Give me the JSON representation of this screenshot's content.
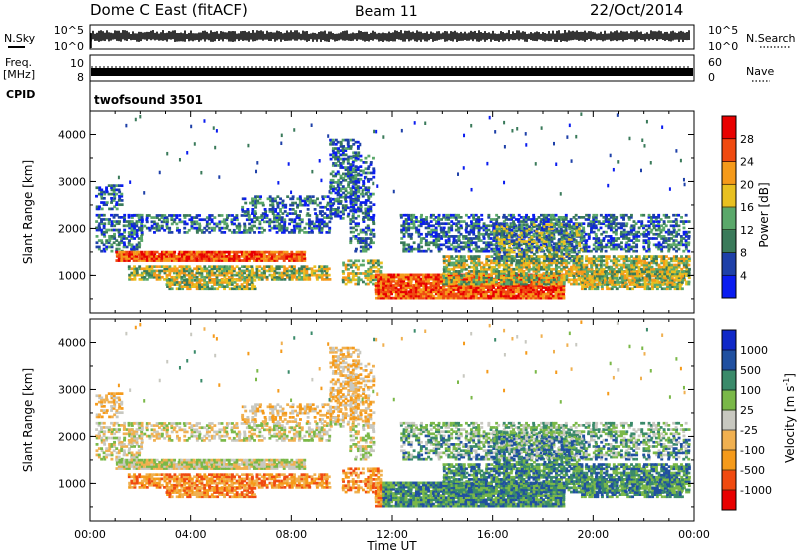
{
  "header": {
    "title": "Dome C East (fitACF)",
    "beam": "Beam 11",
    "date": "22/Oct/2014"
  },
  "top_panels": {
    "noise_left_label": "N.Sky",
    "noise_right_label": "N.Search",
    "noise_ticks_left": [
      "10^5",
      "10^0"
    ],
    "noise_ticks_right": [
      "10^5",
      "10^0"
    ],
    "freq_label_line1": "Freq.",
    "freq_label_line2": "[MHz]",
    "freq_ticks_left": [
      "10",
      "8"
    ],
    "nave_label": "Nave",
    "nave_ticks_right": [
      "60",
      "0"
    ],
    "cpid_label": "CPID",
    "cpid_value": "twofsound 3501"
  },
  "chart_data": [
    {
      "type": "heatmap",
      "panel": "power",
      "xlabel": "Time UT",
      "ylabel": "Slant Range [km]",
      "yticks": [
        "1000",
        "2000",
        "3000",
        "4000"
      ],
      "ylim": [
        200,
        4500
      ],
      "xlim_hours": [
        0,
        24
      ],
      "colorbar_label": "Power [dB]",
      "colorbar_ticks": [
        "28",
        "24",
        "20",
        "16",
        "12",
        "8",
        "4"
      ],
      "colors": [
        "#0a1cf0",
        "#1e40a8",
        "#3a7a5a",
        "#5aa86a",
        "#e8c020",
        "#f59a1a",
        "#f04a10",
        "#e80000"
      ],
      "color_scale_range": [
        0,
        32
      ]
    },
    {
      "type": "heatmap",
      "panel": "velocity",
      "xlabel": "Time UT",
      "ylabel": "Slant Range [km]",
      "yticks": [
        "1000",
        "2000",
        "3000",
        "4000"
      ],
      "ylim": [
        200,
        4500
      ],
      "xlim_hours": [
        0,
        24
      ],
      "colorbar_label_main": "Velocity [m s",
      "colorbar_label_exp": "-1",
      "colorbar_label_close": "]",
      "colorbar_ticks": [
        "1000",
        "500",
        "100",
        "25",
        "-25",
        "-100",
        "-500",
        "-1000"
      ],
      "colors": [
        "#e80000",
        "#f04a10",
        "#f59a1a",
        "#f0b050",
        "#c8c8c0",
        "#7ab848",
        "#3a8a6a",
        "#2050a0",
        "#1028c8"
      ]
    }
  ],
  "x_axis": {
    "ticks": [
      "00:00",
      "04:00",
      "08:00",
      "12:00",
      "16:00",
      "20:00",
      "00:00"
    ],
    "label": "Time UT"
  }
}
